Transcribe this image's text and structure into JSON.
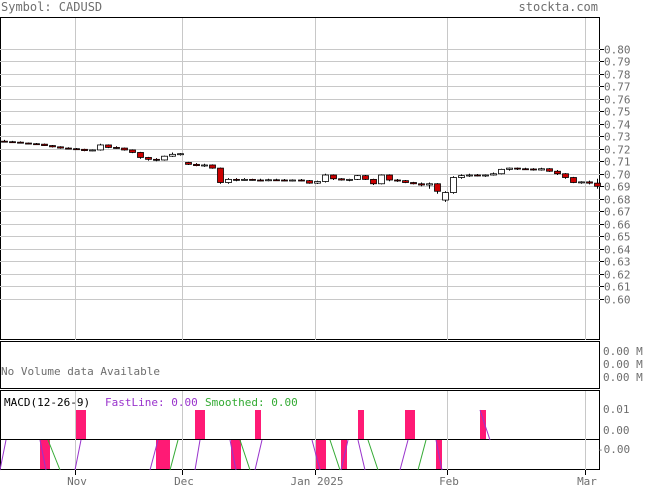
{
  "header": {
    "symbol_label": "Symbol: CADUSD",
    "brand": "stockta.com"
  },
  "colors": {
    "grid": "#c8c8c8",
    "frame": "#000000",
    "up_candle": "#ffffff",
    "down_candle": "#cc0000",
    "macd_bar": "#ff1a75",
    "fast_line": "#9933cc",
    "smoothed_line": "#33aa33",
    "label_gray": "#6e6e6e"
  },
  "volume_panel": {
    "message": "No Volume data Available",
    "ticks": [
      "0.00 M",
      "0.00 M",
      "0.00 M"
    ]
  },
  "macd_panel": {
    "title": "MACD(12-26-9)",
    "fast_label": "FastLine: 0.00",
    "smoothed_label": "Smoothed: 0.00",
    "ticks": [
      "0.01",
      "0.00",
      "-0.00"
    ]
  },
  "chart_data": {
    "type": "candlestick",
    "symbol": "CADUSD",
    "ylim": [
      0.6,
      0.8
    ],
    "yticks": [
      0.8,
      0.79,
      0.78,
      0.77,
      0.76,
      0.75,
      0.74,
      0.73,
      0.72,
      0.71,
      0.7,
      0.69,
      0.68,
      0.67,
      0.66,
      0.65,
      0.64,
      0.63,
      0.62,
      0.61,
      0.6
    ],
    "ytick_labels": [
      "0.80",
      "0.79",
      "0.78",
      "0.77",
      "0.76",
      "0.75",
      "0.74",
      "0.73",
      "0.72",
      "0.71",
      "0.70",
      "0.69",
      "0.68",
      "0.67",
      "0.66",
      "0.65",
      "0.64",
      "0.63",
      "0.62",
      "0.61",
      "0.60"
    ],
    "x_months": [
      "Nov",
      "Dec",
      "Jan 2025",
      "Feb",
      "Mar"
    ],
    "grid": true,
    "series": [
      {
        "values": [
          [
            0.726,
            0.727,
            0.7252,
            0.7256
          ],
          [
            0.7256,
            0.7262,
            0.7248,
            0.7252
          ],
          [
            0.7252,
            0.7258,
            0.7242,
            0.7245
          ],
          [
            0.7245,
            0.725,
            0.7235,
            0.724
          ],
          [
            0.724,
            0.7246,
            0.7232,
            0.7236
          ],
          [
            0.7236,
            0.7242,
            0.7222,
            0.7225
          ],
          [
            0.7225,
            0.723,
            0.721,
            0.7215
          ],
          [
            0.7215,
            0.722,
            0.72,
            0.7205
          ],
          [
            0.7205,
            0.7212,
            0.7195,
            0.72
          ],
          [
            0.72,
            0.7206,
            0.719,
            0.7195
          ],
          [
            0.7195,
            0.72,
            0.718,
            0.7185
          ],
          [
            0.7185,
            0.7195,
            0.718,
            0.719
          ],
          [
            0.719,
            0.724,
            0.7185,
            0.723
          ],
          [
            0.723,
            0.7235,
            0.7205,
            0.721
          ],
          [
            0.721,
            0.722,
            0.72,
            0.7205
          ],
          [
            0.7205,
            0.721,
            0.7185,
            0.719
          ],
          [
            0.719,
            0.7195,
            0.7165,
            0.717
          ],
          [
            0.717,
            0.7175,
            0.712,
            0.713
          ],
          [
            0.713,
            0.7135,
            0.7105,
            0.7115
          ],
          [
            0.7115,
            0.7125,
            0.71,
            0.711
          ],
          [
            0.711,
            0.7145,
            0.7105,
            0.714
          ],
          [
            0.714,
            0.717,
            0.7135,
            0.7155
          ],
          [
            0.7155,
            0.7165,
            0.7145,
            0.716
          ],
          [
            0.709,
            0.7095,
            0.707,
            0.7075
          ],
          [
            0.7075,
            0.7085,
            0.706,
            0.7065
          ],
          [
            0.7065,
            0.708,
            0.7055,
            0.707
          ],
          [
            0.707,
            0.7075,
            0.704,
            0.7045
          ],
          [
            0.7045,
            0.705,
            0.692,
            0.693
          ],
          [
            0.693,
            0.6965,
            0.692,
            0.6955
          ],
          [
            0.6955,
            0.6965,
            0.694,
            0.695
          ],
          [
            0.695,
            0.6965,
            0.6945,
            0.6955
          ],
          [
            0.6955,
            0.696,
            0.6945,
            0.695
          ],
          [
            0.695,
            0.696,
            0.694,
            0.6948
          ],
          [
            0.6948,
            0.696,
            0.694,
            0.6952
          ],
          [
            0.6952,
            0.696,
            0.6945,
            0.695
          ],
          [
            0.695,
            0.6958,
            0.694,
            0.6946
          ],
          [
            0.6946,
            0.6955,
            0.6938,
            0.695
          ],
          [
            0.695,
            0.6958,
            0.694,
            0.6945
          ],
          [
            0.6945,
            0.695,
            0.692,
            0.6925
          ],
          [
            0.6925,
            0.6945,
            0.6918,
            0.6938
          ],
          [
            0.6938,
            0.7,
            0.693,
            0.699
          ],
          [
            0.699,
            0.6995,
            0.695,
            0.696
          ],
          [
            0.696,
            0.6965,
            0.6945,
            0.695
          ],
          [
            0.695,
            0.696,
            0.694,
            0.6955
          ],
          [
            0.6955,
            0.699,
            0.695,
            0.6985
          ],
          [
            0.6985,
            0.699,
            0.695,
            0.6955
          ],
          [
            0.6955,
            0.696,
            0.691,
            0.692
          ],
          [
            0.692,
            0.6995,
            0.6915,
            0.699
          ],
          [
            0.699,
            0.6995,
            0.694,
            0.695
          ],
          [
            0.695,
            0.6958,
            0.6935,
            0.6945
          ],
          [
            0.6945,
            0.695,
            0.6925,
            0.693
          ],
          [
            0.693,
            0.6935,
            0.6915,
            0.692
          ],
          [
            0.692,
            0.693,
            0.69,
            0.691
          ],
          [
            0.691,
            0.693,
            0.688,
            0.692
          ],
          [
            0.692,
            0.6925,
            0.684,
            0.686
          ],
          [
            0.679,
            0.686,
            0.6775,
            0.685
          ],
          [
            0.685,
            0.698,
            0.684,
            0.697
          ],
          [
            0.697,
            0.6995,
            0.696,
            0.6985
          ],
          [
            0.6985,
            0.7,
            0.6975,
            0.699
          ],
          [
            0.699,
            0.6998,
            0.6978,
            0.6985
          ],
          [
            0.6985,
            0.6995,
            0.6975,
            0.699
          ],
          [
            0.699,
            0.701,
            0.6985,
            0.7
          ],
          [
            0.7,
            0.704,
            0.6995,
            0.7035
          ],
          [
            0.7035,
            0.705,
            0.7025,
            0.7045
          ],
          [
            0.7045,
            0.705,
            0.703,
            0.704
          ],
          [
            0.704,
            0.7048,
            0.703,
            0.7038
          ],
          [
            0.7038,
            0.7045,
            0.7025,
            0.703
          ],
          [
            0.703,
            0.7048,
            0.7025,
            0.704
          ],
          [
            0.704,
            0.7045,
            0.7015,
            0.702
          ],
          [
            0.702,
            0.703,
            0.699,
            0.7
          ],
          [
            0.7,
            0.7005,
            0.696,
            0.697
          ],
          [
            0.697,
            0.6975,
            0.6925,
            0.693
          ],
          [
            0.693,
            0.694,
            0.692,
            0.6935
          ],
          [
            0.6935,
            0.6945,
            0.6915,
            0.6925
          ],
          [
            0.6925,
            0.696,
            0.688,
            0.69
          ]
        ]
      }
    ]
  }
}
